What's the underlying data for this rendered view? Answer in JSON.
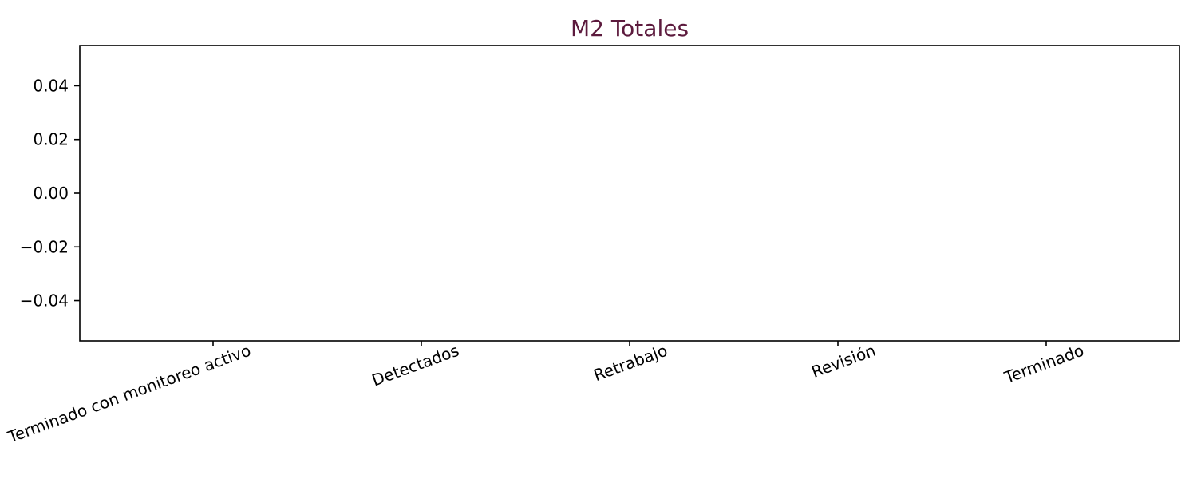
{
  "chart_data": {
    "type": "bar",
    "title": "M2 Totales",
    "title_color": "#5c1a3d",
    "categories": [
      "Terminado con monitoreo activo",
      "Detectados",
      "Retrabajo",
      "Revisión",
      "Terminado"
    ],
    "values": [
      null,
      null,
      null,
      null,
      null
    ],
    "xlabel": "",
    "ylabel": "",
    "ylim": [
      -0.055,
      0.055
    ],
    "yticks": [
      "0.04",
      "0.02",
      "0.00",
      "−0.02",
      "−0.04"
    ],
    "ytick_values": [
      0.04,
      0.02,
      0.0,
      -0.02,
      -0.04
    ],
    "grid": false,
    "x_tick_rotation": "rotated",
    "axis_color": "#000000"
  }
}
